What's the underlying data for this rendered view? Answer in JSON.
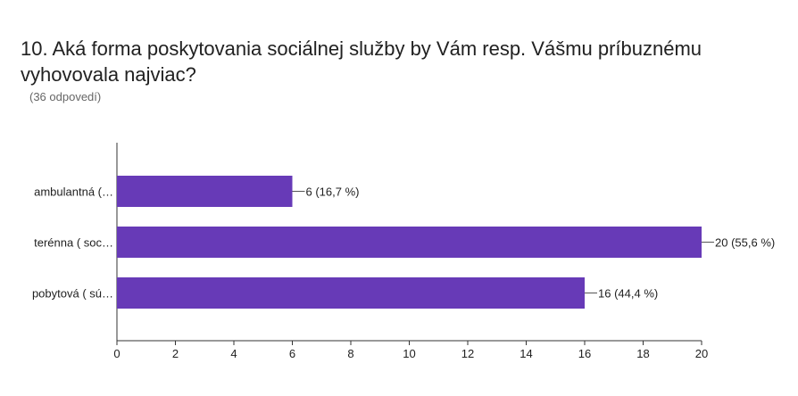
{
  "question": {
    "title": "10. Aká forma poskytovania sociálnej služby by Vám resp. Vášmu príbuznému vyhovovala najviac?",
    "response_count": "(36 odpovedí)"
  },
  "colors": {
    "bar": "#673ab7",
    "axis": "#333333",
    "text": "#212121"
  },
  "chart_data": {
    "type": "bar",
    "orientation": "horizontal",
    "categories": [
      "ambulantná (…",
      "terénna ( soc…",
      "pobytová ( sú…"
    ],
    "values": [
      6,
      20,
      16
    ],
    "data_labels": [
      "6 (16,7 %)",
      "20 (55,6 %)",
      "16 (44,4 %)"
    ],
    "xlim": [
      0,
      20
    ],
    "xticks": [
      0,
      2,
      4,
      6,
      8,
      10,
      12,
      14,
      16,
      18,
      20
    ],
    "grid": false,
    "legend": "none"
  }
}
